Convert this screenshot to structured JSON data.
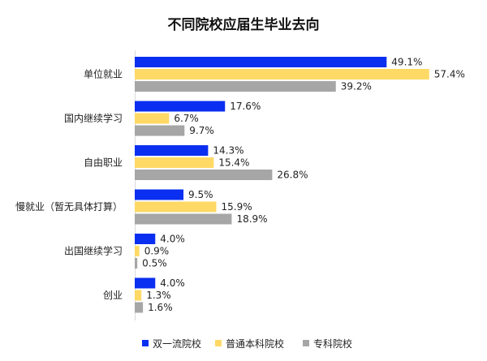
{
  "chart_data": {
    "type": "bar",
    "orientation": "horizontal",
    "title": "不同院校应届生毕业去向",
    "categories": [
      "单位就业",
      "国内继续学习",
      "自由职业",
      "慢就业（暂无具体打算）",
      "出国继续学习",
      "创业"
    ],
    "series": [
      {
        "name": "双一流院校",
        "color": "#0a2ff0",
        "values": [
          49.1,
          17.6,
          14.3,
          9.5,
          4.0,
          4.0
        ],
        "labels": [
          "49.1%",
          "17.6%",
          "14.3%",
          "9.5%",
          "4.0%",
          "4.0%"
        ]
      },
      {
        "name": "普通本科院校",
        "color": "#ffd966",
        "values": [
          57.4,
          6.7,
          15.4,
          15.9,
          0.9,
          1.3
        ],
        "labels": [
          "57.4%",
          "6.7%",
          "15.4%",
          "15.9%",
          "0.9%",
          "1.3%"
        ]
      },
      {
        "name": "专科院校",
        "color": "#a6a6a6",
        "values": [
          39.2,
          9.7,
          26.8,
          18.9,
          0.5,
          1.6
        ],
        "labels": [
          "39.2%",
          "9.7%",
          "26.8%",
          "18.9%",
          "0.5%",
          "1.6%"
        ]
      }
    ],
    "value_unit": "%",
    "xlim": [
      0,
      60
    ],
    "grid": false,
    "axis_visible": false,
    "legend_position": "bottom"
  }
}
